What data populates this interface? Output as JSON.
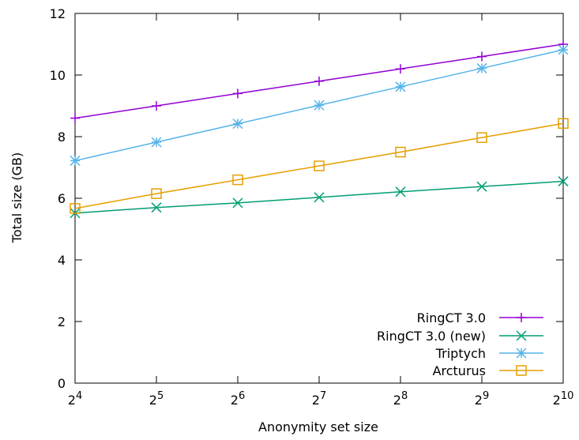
{
  "chart_data": {
    "type": "line",
    "title": "",
    "xlabel": "Anonymity set size",
    "ylabel": "Total size (GB)",
    "x_tick_labels": [
      {
        "base": "2",
        "exp": "4"
      },
      {
        "base": "2",
        "exp": "5"
      },
      {
        "base": "2",
        "exp": "6"
      },
      {
        "base": "2",
        "exp": "7"
      },
      {
        "base": "2",
        "exp": "8"
      },
      {
        "base": "2",
        "exp": "9"
      },
      {
        "base": "2",
        "exp": "10"
      }
    ],
    "x": [
      16,
      32,
      64,
      128,
      256,
      512,
      1024
    ],
    "x_scale": "log2",
    "y_tick_labels": [
      "0",
      "2",
      "4",
      "6",
      "8",
      "10",
      "12"
    ],
    "ylim": [
      0,
      12
    ],
    "grid": false,
    "legend_position": "bottom-right",
    "series": [
      {
        "name": "RingCT 3.0",
        "color": "#9400d3",
        "marker": "plus",
        "values": [
          8.6,
          9.0,
          9.4,
          9.8,
          10.2,
          10.6,
          11.0
        ]
      },
      {
        "name": "RingCT 3.0 (new)",
        "color": "#009e73",
        "marker": "cross",
        "values": [
          5.52,
          5.7,
          5.85,
          6.03,
          6.21,
          6.38,
          6.55
        ]
      },
      {
        "name": "Triptych",
        "color": "#56b4e9",
        "marker": "star",
        "values": [
          7.22,
          7.82,
          8.42,
          9.02,
          9.62,
          10.22,
          10.82
        ]
      },
      {
        "name": "Arcturus",
        "color": "#e69f00",
        "marker": "square",
        "values": [
          5.67,
          6.15,
          6.6,
          7.05,
          7.5,
          7.97,
          8.43
        ]
      }
    ]
  }
}
